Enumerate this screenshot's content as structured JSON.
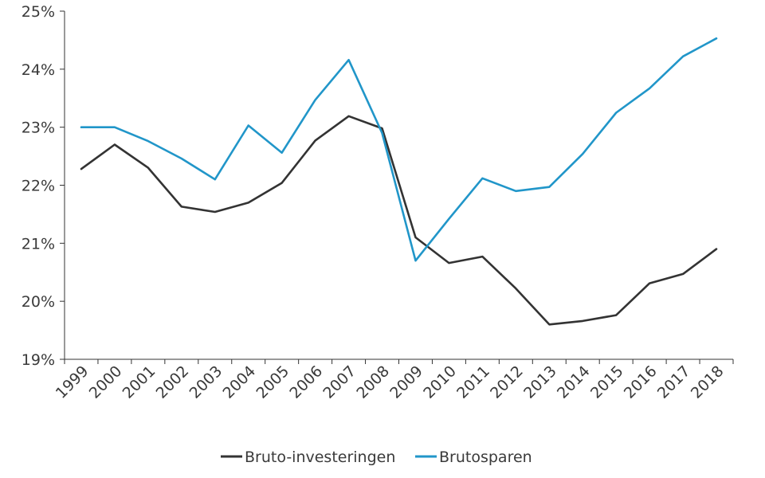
{
  "chart_data": {
    "type": "line",
    "title": "",
    "xlabel": "",
    "ylabel": "",
    "x": [
      "1999",
      "2000",
      "2001",
      "2002",
      "2003",
      "2004",
      "2005",
      "2006",
      "2007",
      "2008",
      "2009",
      "2010",
      "2011",
      "2012",
      "2013",
      "2014",
      "2015",
      "2016",
      "2017",
      "2018"
    ],
    "ylim": [
      19,
      25
    ],
    "yticks": [
      19,
      20,
      21,
      22,
      23,
      24,
      25
    ],
    "ytick_labels": [
      "19%",
      "20%",
      "21%",
      "22%",
      "23%",
      "24%",
      "25%"
    ],
    "grid": false,
    "legend_position": "bottom",
    "series": [
      {
        "name": "Bruto-investeringen",
        "color": "#333333",
        "values": [
          22.28,
          22.7,
          22.3,
          21.63,
          21.54,
          21.7,
          22.04,
          22.77,
          23.19,
          22.98,
          21.1,
          20.66,
          20.77,
          20.22,
          19.6,
          19.66,
          19.76,
          20.31,
          20.47,
          20.9
        ]
      },
      {
        "name": "Brutosparen",
        "color": "#2196c9",
        "values": [
          23.0,
          23.0,
          22.76,
          22.46,
          22.1,
          23.03,
          22.56,
          23.47,
          24.16,
          22.9,
          20.7,
          21.42,
          22.12,
          21.9,
          21.97,
          22.54,
          23.25,
          23.67,
          24.22,
          24.53
        ]
      }
    ]
  }
}
